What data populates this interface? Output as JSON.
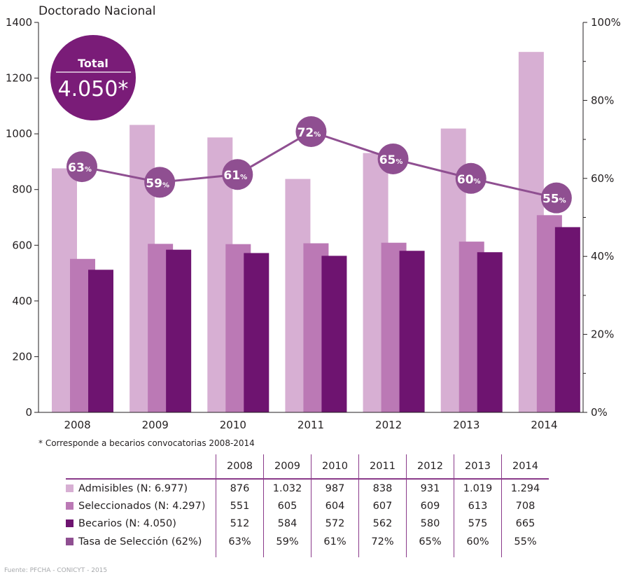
{
  "colors": {
    "admisibles": "#d7afd3",
    "seleccionados": "#bb79b5",
    "becarios": "#6e1470",
    "tasa": "#8f4f91",
    "total_circle": "#7a1c78",
    "axis": "#231f20"
  },
  "total_badge": {
    "label": "Total",
    "value": "4.050*"
  },
  "footnote": "* Corresponde a becarios convocatorias 2008-2014",
  "source": "Fuente: PFCHA - CONICYT - 2015",
  "chart_data": {
    "type": "bar",
    "title": "Doctorado Nacional",
    "categories": [
      "2008",
      "2009",
      "2010",
      "2011",
      "2012",
      "2013",
      "2014"
    ],
    "y_left": {
      "min": 0,
      "max": 1400,
      "ticks": [
        0,
        200,
        400,
        600,
        800,
        1000,
        1200,
        1400
      ]
    },
    "y_right": {
      "min": 0,
      "max": 100,
      "ticks": [
        0,
        20,
        40,
        60,
        80,
        100
      ],
      "tick_labels": [
        "0%",
        "20%",
        "40%",
        "60%",
        "80%",
        "100%"
      ]
    },
    "grid": false,
    "series": [
      {
        "name": "Admisibles",
        "values": [
          876,
          1032,
          987,
          838,
          931,
          1019,
          1294
        ],
        "axis": "left",
        "kind": "bar"
      },
      {
        "name": "Seleccionados",
        "values": [
          551,
          605,
          604,
          607,
          609,
          613,
          708
        ],
        "axis": "left",
        "kind": "bar"
      },
      {
        "name": "Becarios",
        "values": [
          512,
          584,
          572,
          562,
          580,
          575,
          665
        ],
        "axis": "left",
        "kind": "bar"
      },
      {
        "name": "Tasa de Selección",
        "values": [
          63,
          59,
          61,
          72,
          65,
          60,
          55
        ],
        "axis": "right",
        "kind": "line",
        "point_labels": [
          "63",
          "59",
          "61",
          "72",
          "65",
          "60",
          "55"
        ]
      }
    ]
  },
  "table": {
    "columns": [
      "2008",
      "2009",
      "2010",
      "2011",
      "2012",
      "2013",
      "2014"
    ],
    "rows": [
      {
        "label": "Admisibles (N: 6.977)",
        "color": "#d7afd3",
        "values": [
          "876",
          "1.032",
          "987",
          "838",
          "931",
          "1.019",
          "1.294"
        ]
      },
      {
        "label": "Seleccionados (N: 4.297)",
        "color": "#bb79b5",
        "values": [
          "551",
          "605",
          "604",
          "607",
          "609",
          "613",
          "708"
        ]
      },
      {
        "label": "Becarios (N: 4.050)",
        "color": "#6e1470",
        "values": [
          "512",
          "584",
          "572",
          "562",
          "580",
          "575",
          "665"
        ]
      },
      {
        "label": "Tasa de Selección (62%)",
        "color": "#8f4f91",
        "values": [
          "63%",
          "59%",
          "61%",
          "72%",
          "65%",
          "60%",
          "55%"
        ]
      }
    ]
  }
}
